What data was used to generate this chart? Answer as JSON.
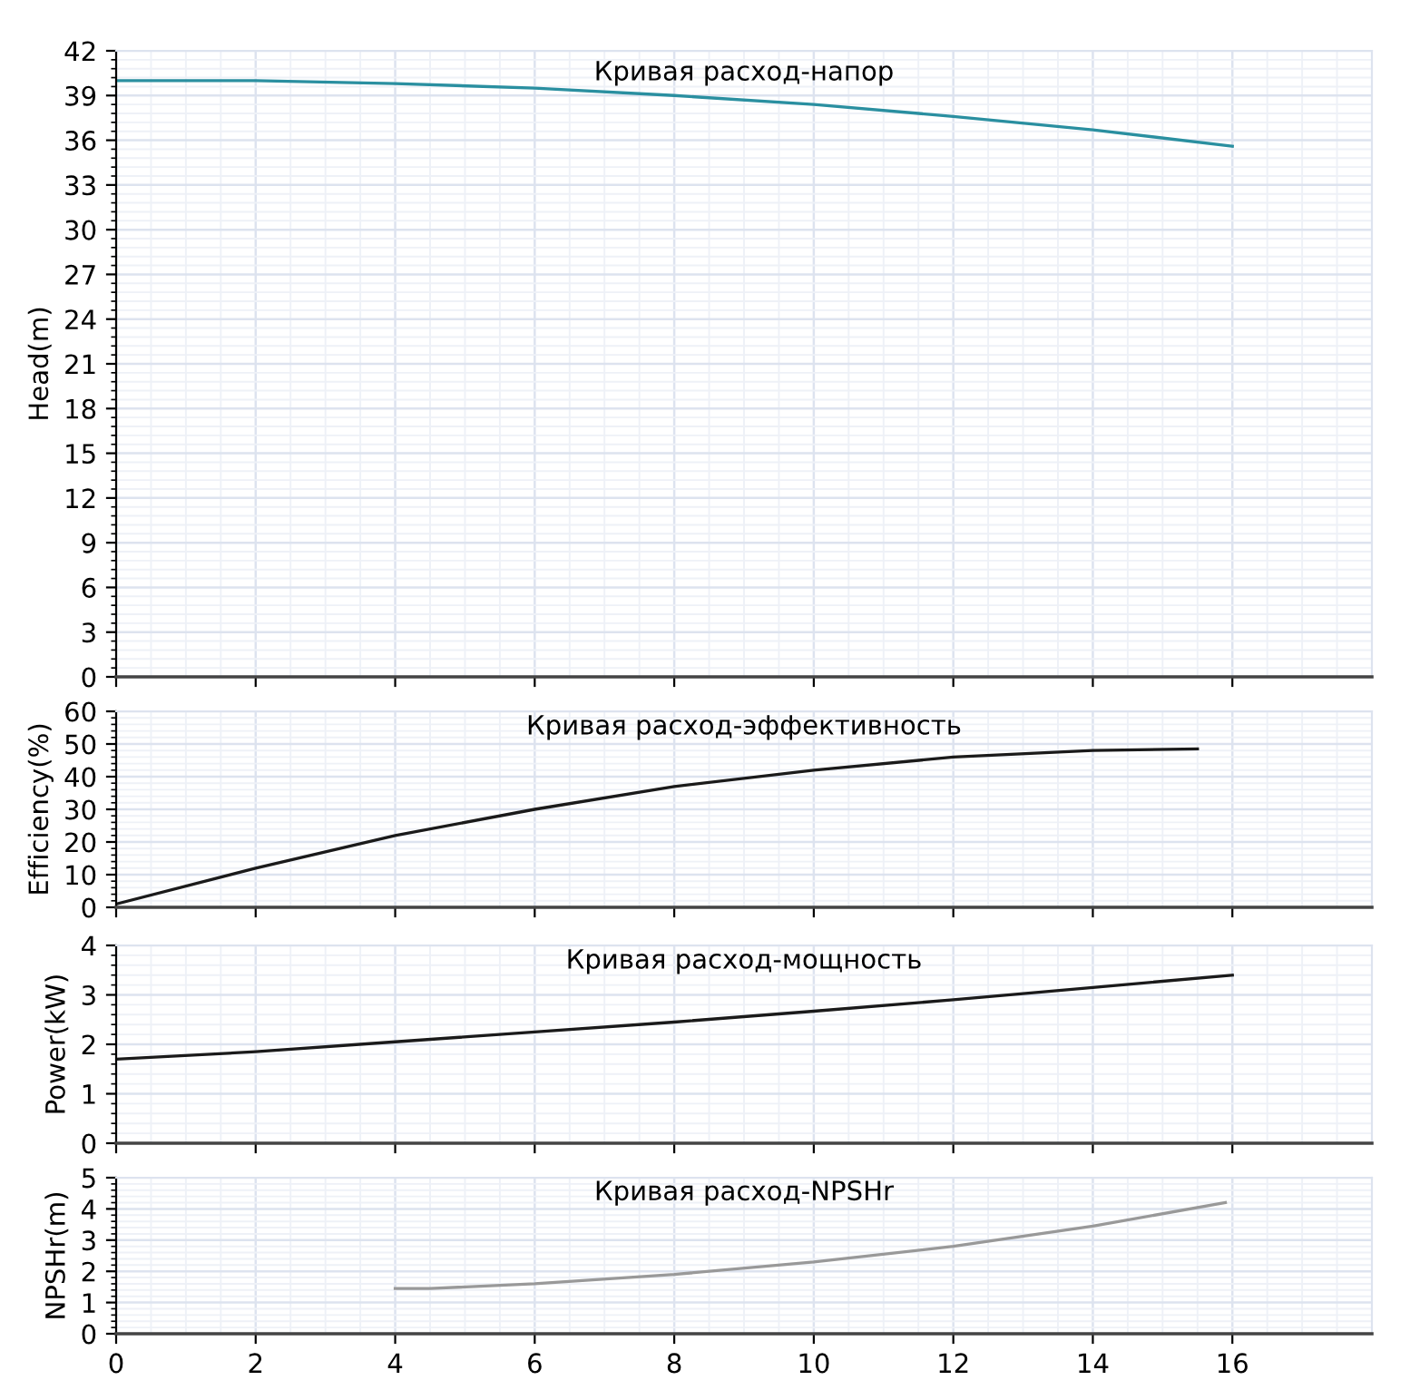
{
  "chart_data": [
    {
      "type": "line",
      "title": "Кривая расход-напор",
      "ylabel": "Head(m)",
      "x": [
        0,
        2,
        4,
        6,
        8,
        10,
        12,
        14,
        16
      ],
      "series": [
        {
          "color": "#2a8fa0",
          "values": [
            40,
            40,
            39.8,
            39.5,
            39.0,
            38.4,
            37.6,
            36.7,
            35.6
          ]
        }
      ],
      "xlim": [
        0,
        18
      ],
      "xticks": [
        0,
        2,
        4,
        6,
        8,
        10,
        12,
        14,
        16
      ],
      "ylim": [
        0,
        42
      ],
      "yticks": [
        0,
        3,
        6,
        9,
        12,
        15,
        18,
        21,
        24,
        27,
        30,
        33,
        36,
        39,
        42
      ],
      "grid": true,
      "tick_labels": "y"
    },
    {
      "type": "line",
      "title": "Кривая расход-эффективность",
      "ylabel": "Efficiency(%)",
      "x": [
        0,
        2,
        4,
        6,
        8,
        10,
        12,
        14,
        15.5
      ],
      "series": [
        {
          "color": "#1a1a1a",
          "values": [
            1,
            12,
            22,
            30,
            37,
            42,
            46,
            48,
            48.5
          ]
        }
      ],
      "xlim": [
        0,
        18
      ],
      "xticks": [
        0,
        2,
        4,
        6,
        8,
        10,
        12,
        14,
        16
      ],
      "ylim": [
        0,
        60
      ],
      "yticks": [
        0,
        10,
        20,
        30,
        40,
        50,
        60
      ],
      "grid": true,
      "tick_labels": "y"
    },
    {
      "type": "line",
      "title": "Кривая расход-мощность",
      "ylabel": "Power(kW)",
      "x": [
        0,
        2,
        4,
        6,
        8,
        10,
        12,
        14,
        16
      ],
      "series": [
        {
          "color": "#1a1a1a",
          "values": [
            1.7,
            1.85,
            2.05,
            2.25,
            2.45,
            2.67,
            2.9,
            3.15,
            3.4
          ]
        }
      ],
      "xlim": [
        0,
        18
      ],
      "xticks": [
        0,
        2,
        4,
        6,
        8,
        10,
        12,
        14,
        16
      ],
      "ylim": [
        0,
        4
      ],
      "yticks": [
        0,
        1,
        2,
        3,
        4
      ],
      "grid": true,
      "tick_labels": "y"
    },
    {
      "type": "line",
      "title": "Кривая расход-NPSHr",
      "ylabel": "NPSHr(m)",
      "x": [
        4,
        4.5,
        6,
        8,
        10,
        12,
        14,
        15.9
      ],
      "series": [
        {
          "color": "#999999",
          "values": [
            1.45,
            1.45,
            1.6,
            1.9,
            2.3,
            2.8,
            3.45,
            4.2
          ]
        }
      ],
      "xlim": [
        0,
        18
      ],
      "xticks": [
        0,
        2,
        4,
        6,
        8,
        10,
        12,
        14,
        16
      ],
      "ylim": [
        0,
        5
      ],
      "yticks": [
        0,
        1,
        2,
        3,
        4,
        5
      ],
      "grid": true
    }
  ]
}
